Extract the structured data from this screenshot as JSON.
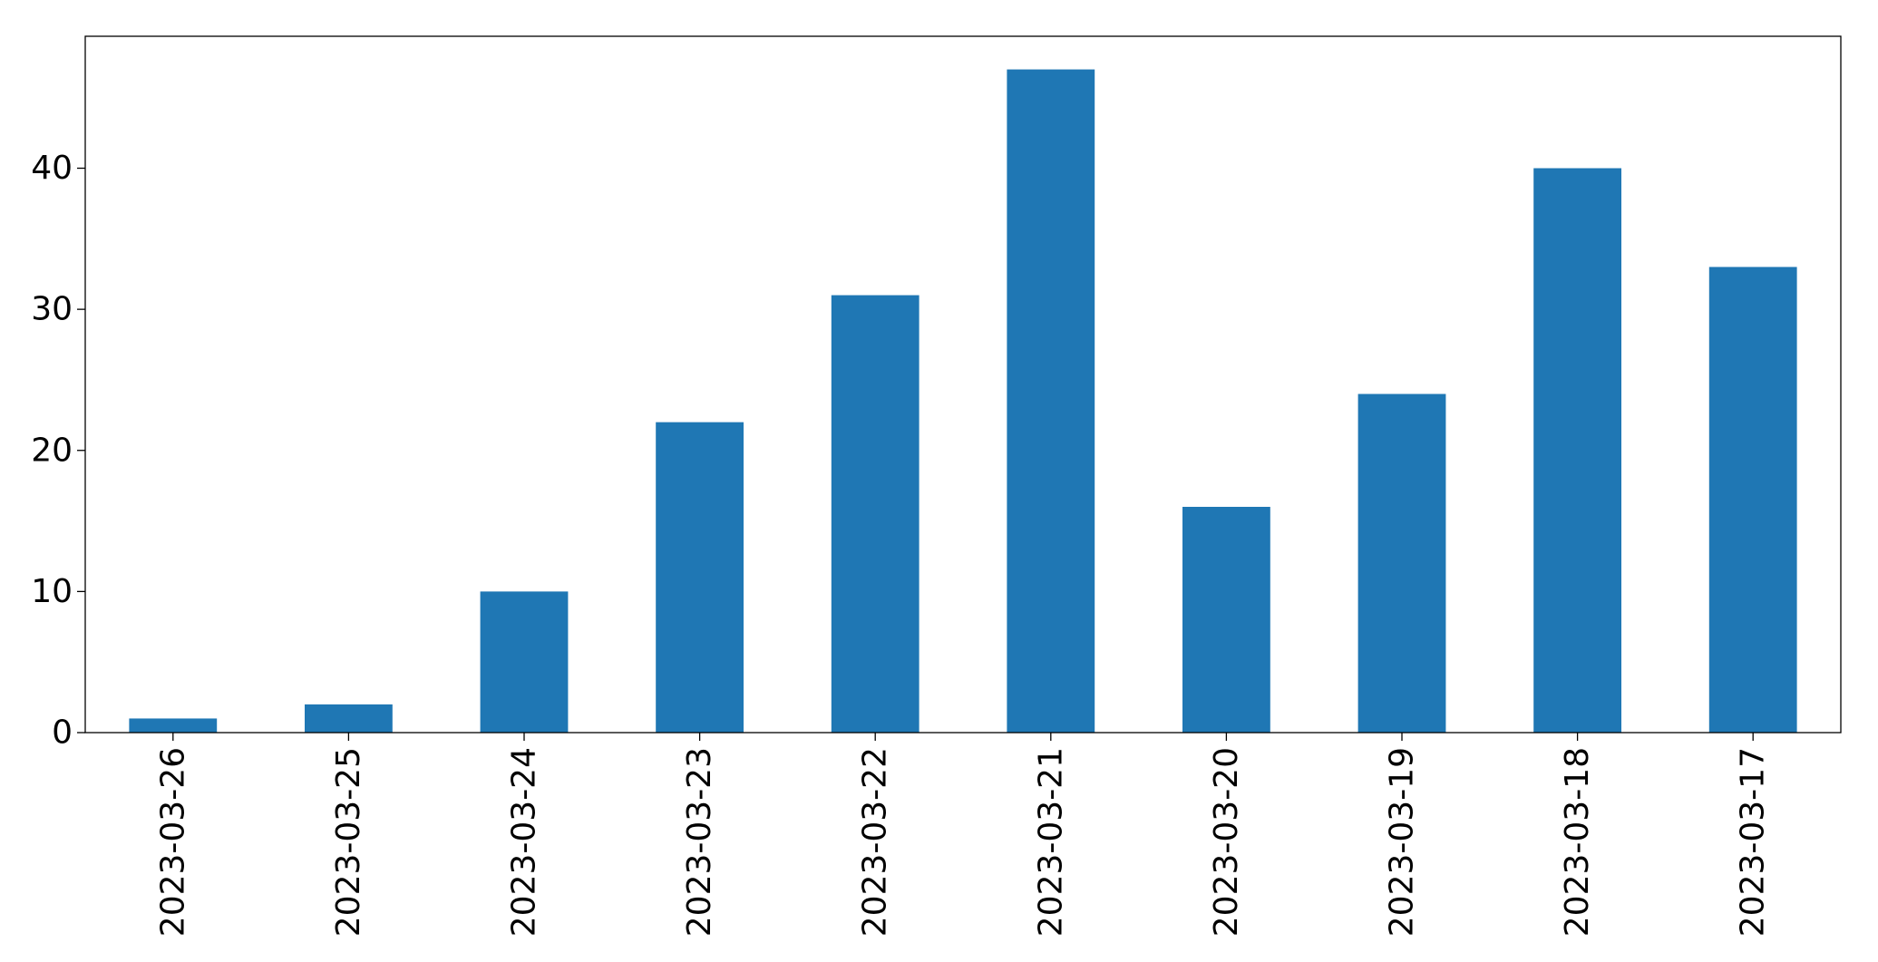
{
  "chart_data": {
    "type": "bar",
    "categories": [
      "2023-03-26",
      "2023-03-25",
      "2023-03-24",
      "2023-03-23",
      "2023-03-22",
      "2023-03-21",
      "2023-03-20",
      "2023-03-19",
      "2023-03-18",
      "2023-03-17"
    ],
    "values": [
      1,
      2,
      10,
      22,
      31,
      47,
      16,
      24,
      40,
      33
    ],
    "color": "#1f77b4",
    "ylim": [
      0,
      49.35
    ],
    "yticks": [
      0,
      10,
      20,
      30,
      40
    ],
    "grid": false
  }
}
